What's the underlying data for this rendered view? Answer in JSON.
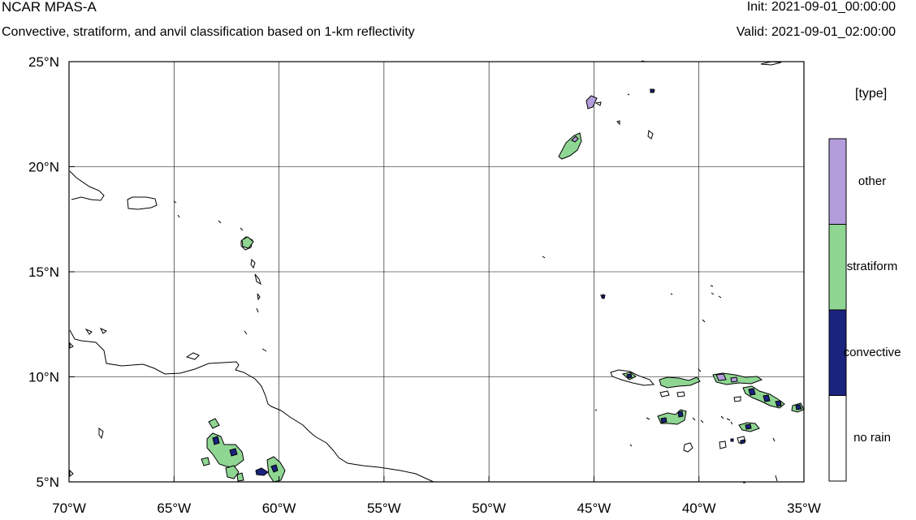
{
  "header": {
    "title": "NCAR MPAS-A",
    "subtitle": "Convective, stratiform, and anvil classification based on 1-km reflectivity",
    "init": "Init: 2021-09-01_00:00:00",
    "valid": "Valid: 2021-09-01_02:00:00"
  },
  "map": {
    "lon_range": [
      -70,
      -35
    ],
    "lat_range": [
      5,
      25
    ],
    "lon_ticks": [
      {
        "value": -70,
        "label": "70°W"
      },
      {
        "value": -65,
        "label": "65°W"
      },
      {
        "value": -60,
        "label": "60°W"
      },
      {
        "value": -55,
        "label": "55°W"
      },
      {
        "value": -50,
        "label": "50°W"
      },
      {
        "value": -45,
        "label": "45°W"
      },
      {
        "value": -40,
        "label": "40°W"
      },
      {
        "value": -35,
        "label": "35°W"
      }
    ],
    "lat_ticks": [
      {
        "value": 5,
        "label": "5°N"
      },
      {
        "value": 10,
        "label": "10°N"
      },
      {
        "value": 15,
        "label": "15°N"
      },
      {
        "value": 20,
        "label": "20°N"
      },
      {
        "value": 25,
        "label": "25°N"
      }
    ],
    "grid": true
  },
  "legend": {
    "title": "[type]",
    "items": [
      {
        "label": "other",
        "color": "#b39ddb"
      },
      {
        "label": "stratiform",
        "color": "#8fd693"
      },
      {
        "label": "convective",
        "color": "#1a237e"
      },
      {
        "label": "no rain",
        "color": "#ffffff"
      }
    ]
  },
  "colors": {
    "other": "#b39ddb",
    "stratiform": "#8fd693",
    "convective": "#1a237e",
    "no_rain": "#ffffff"
  }
}
